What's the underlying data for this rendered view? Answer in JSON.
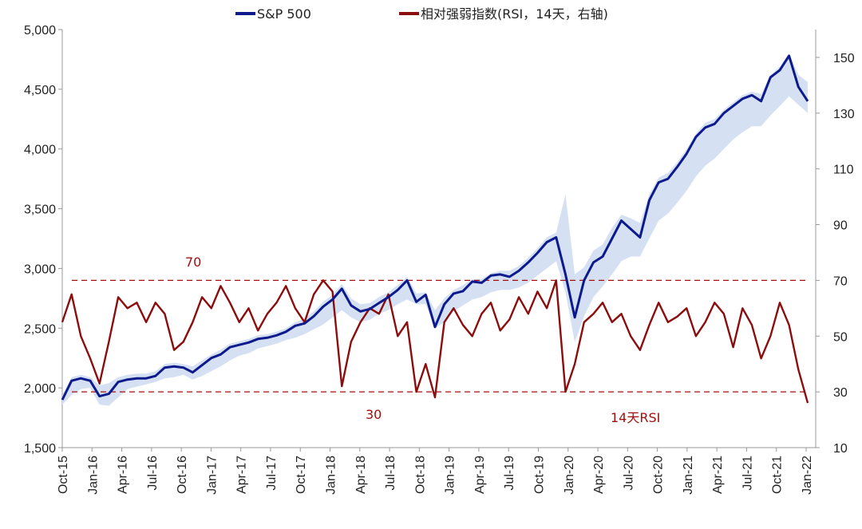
{
  "chart_data": {
    "type": "line",
    "legend": [
      {
        "label": "S&P 500",
        "color": "#0d1a8c"
      },
      {
        "label": "相对强弱指数(RSI，14天，右轴)",
        "color": "#8b0d0d"
      }
    ],
    "legend_position": "top",
    "band_color": "#d5e1f3",
    "x_ticks": [
      "Oct-15",
      "Jan-16",
      "Apr-16",
      "Jul-16",
      "Oct-16",
      "Jan-17",
      "Apr-17",
      "Jul-17",
      "Oct-17",
      "Jan-18",
      "Apr-18",
      "Jul-18",
      "Oct-18",
      "Jan-19",
      "Apr-19",
      "Jul-19",
      "Oct-19",
      "Jan-20",
      "Apr-20",
      "Jul-20",
      "Oct-20",
      "Jan-21",
      "Apr-21",
      "Jul-21",
      "Oct-21",
      "Jan-22"
    ],
    "y_left": {
      "ticks": [
        "1,500",
        "2,000",
        "2,500",
        "3,000",
        "3,500",
        "4,000",
        "4,500",
        "5,000"
      ],
      "range": [
        1500,
        5000
      ]
    },
    "y_right": {
      "ticks": [
        "10",
        "30",
        "50",
        "70",
        "90",
        "110",
        "130",
        "150"
      ],
      "range": [
        10,
        160
      ]
    },
    "reference_lines": [
      {
        "axis": "right",
        "value": 70,
        "label": "70",
        "color": "#a01010"
      },
      {
        "axis": "right",
        "value": 30,
        "label": "30",
        "color": "#a01010"
      }
    ],
    "annotation": {
      "text": "14天RSI",
      "color": "#a01010"
    },
    "grid": false,
    "series": [
      {
        "name": "S&P 500",
        "axis": "left",
        "color": "#0d1a8c",
        "monthly_values": [
          1900,
          2060,
          2080,
          2060,
          1930,
          1950,
          2050,
          2070,
          2080,
          2080,
          2100,
          2170,
          2180,
          2170,
          2130,
          2190,
          2250,
          2280,
          2340,
          2360,
          2380,
          2410,
          2420,
          2440,
          2470,
          2520,
          2540,
          2600,
          2680,
          2740,
          2830,
          2690,
          2640,
          2660,
          2710,
          2760,
          2820,
          2900,
          2720,
          2780,
          2510,
          2700,
          2790,
          2810,
          2890,
          2880,
          2940,
          2950,
          2930,
          2980,
          3050,
          3130,
          3220,
          3260,
          2950,
          2590,
          2900,
          3050,
          3100,
          3250,
          3400,
          3330,
          3260,
          3570,
          3720,
          3750,
          3850,
          3960,
          4100,
          4180,
          4210,
          4300,
          4360,
          4420,
          4450,
          4400,
          4600,
          4660,
          4780,
          4520,
          4400
        ]
      },
      {
        "name": "相对强弱指数(RSI，14天，右轴)",
        "axis": "right",
        "color": "#8b0d0d",
        "monthly_values": [
          55,
          65,
          50,
          42,
          33,
          48,
          64,
          60,
          62,
          55,
          62,
          58,
          45,
          48,
          55,
          64,
          60,
          68,
          62,
          55,
          60,
          52,
          58,
          62,
          68,
          60,
          55,
          65,
          70,
          66,
          32,
          48,
          55,
          60,
          58,
          65,
          50,
          55,
          30,
          40,
          28,
          55,
          60,
          54,
          50,
          58,
          62,
          52,
          56,
          64,
          58,
          66,
          60,
          70,
          30,
          40,
          55,
          58,
          62,
          55,
          58,
          50,
          45,
          54,
          62,
          55,
          57,
          60,
          50,
          55,
          62,
          58,
          46,
          60,
          54,
          42,
          50,
          62,
          54,
          38,
          26
        ]
      },
      {
        "name": "band",
        "axis": "left",
        "lower_values": [
          1860,
          1940,
          1990,
          2000,
          1860,
          1850,
          1920,
          1990,
          2010,
          2030,
          2050,
          2080,
          2090,
          2110,
          2070,
          2100,
          2140,
          2180,
          2230,
          2270,
          2290,
          2330,
          2350,
          2370,
          2400,
          2420,
          2450,
          2490,
          2530,
          2590,
          2650,
          2590,
          2550,
          2570,
          2620,
          2650,
          2700,
          2740,
          2700,
          2700,
          2500,
          2550,
          2640,
          2690,
          2740,
          2760,
          2800,
          2820,
          2820,
          2840,
          2880,
          2940,
          3000,
          3060,
          2800,
          2380,
          2600,
          2760,
          2850,
          2950,
          3060,
          3100,
          3100,
          3250,
          3400,
          3460,
          3550,
          3650,
          3770,
          3860,
          3920,
          4000,
          4080,
          4140,
          4190,
          4190,
          4280,
          4360,
          4440,
          4370,
          4300
        ],
        "upper_values": [
          1940,
          2090,
          2110,
          2090,
          2020,
          2040,
          2090,
          2110,
          2120,
          2120,
          2140,
          2200,
          2210,
          2200,
          2180,
          2230,
          2280,
          2320,
          2370,
          2390,
          2410,
          2440,
          2450,
          2470,
          2500,
          2550,
          2580,
          2640,
          2720,
          2780,
          2870,
          2750,
          2700,
          2710,
          2760,
          2800,
          2860,
          2930,
          2790,
          2800,
          2650,
          2750,
          2820,
          2860,
          2910,
          2910,
          2960,
          2980,
          2980,
          3020,
          3090,
          3170,
          3260,
          3300,
          3620,
          2950,
          3010,
          3150,
          3200,
          3340,
          3450,
          3420,
          3380,
          3620,
          3760,
          3800,
          3890,
          4000,
          4130,
          4220,
          4250,
          4330,
          4390,
          4450,
          4480,
          4460,
          4620,
          4690,
          4800,
          4620,
          4560
        ]
      }
    ]
  }
}
